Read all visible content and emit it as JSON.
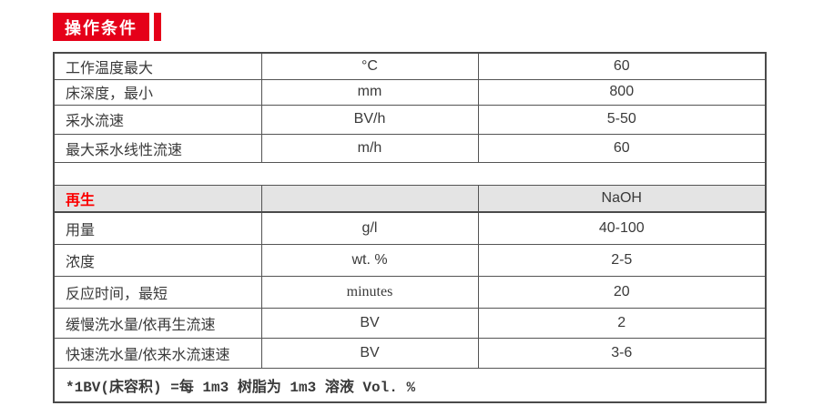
{
  "header": {
    "badge_label": "操作条件",
    "badge_color": "#e50019",
    "accent_bar_color": "#e50019"
  },
  "table": {
    "section_bg": "#e4e4e4",
    "section_text_color": "#fb0000",
    "rows": [
      {
        "type": "data",
        "label": "工作温度最大",
        "unit": "°C",
        "value": "60"
      },
      {
        "type": "data",
        "label": "床深度，最小",
        "unit": "mm",
        "value": "800"
      },
      {
        "type": "data",
        "label": "采水流速",
        "unit": "BV/h",
        "value": "5-50"
      },
      {
        "type": "data",
        "label": "最大采水线性流速",
        "unit": "m/h",
        "value": "60"
      },
      {
        "type": "spacer",
        "label": "",
        "unit": "",
        "value": ""
      },
      {
        "type": "section",
        "label": "再生",
        "unit": "",
        "value": "NaOH"
      },
      {
        "type": "data",
        "label": "用量",
        "unit": "g/l",
        "value": "40-100"
      },
      {
        "type": "data",
        "label": "浓度",
        "unit": "wt. %",
        "value": "2-5"
      },
      {
        "type": "data",
        "label": "反应时间，最短",
        "unit": "minutes",
        "value": "20",
        "unit_serif": true
      },
      {
        "type": "data",
        "label": "缓慢洗水量/依再生流速",
        "unit": "BV",
        "value": "2"
      },
      {
        "type": "data",
        "label": "快速洗水量/依来水流速速",
        "unit": "BV",
        "value": "3-6"
      },
      {
        "type": "footnote",
        "label": "*1BV(床容积)  =每 1m3 树脂为 1m3 溶液 Vol. %",
        "unit": "",
        "value": ""
      }
    ]
  }
}
